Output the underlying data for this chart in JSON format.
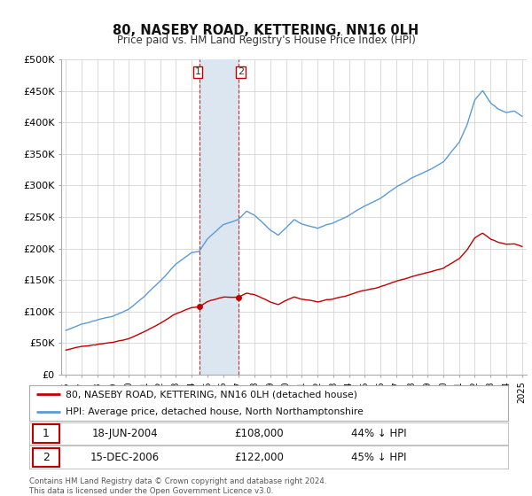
{
  "title": "80, NASEBY ROAD, KETTERING, NN16 0LH",
  "subtitle": "Price paid vs. HM Land Registry's House Price Index (HPI)",
  "ylabel_ticks": [
    "£0",
    "£50K",
    "£100K",
    "£150K",
    "£200K",
    "£250K",
    "£300K",
    "£350K",
    "£400K",
    "£450K",
    "£500K"
  ],
  "ytick_values": [
    0,
    50000,
    100000,
    150000,
    200000,
    250000,
    300000,
    350000,
    400000,
    450000,
    500000
  ],
  "ylim": [
    0,
    500000
  ],
  "hpi_color": "#5b9bd5",
  "price_color": "#c00000",
  "sale1_date_label": "18-JUN-2004",
  "sale1_price": 108000,
  "sale1_price_label": "£108,000",
  "sale1_pct_label": "44% ↓ HPI",
  "sale2_date_label": "15-DEC-2006",
  "sale2_price": 122000,
  "sale2_price_label": "£122,000",
  "sale2_pct_label": "45% ↓ HPI",
  "legend_line1": "80, NASEBY ROAD, KETTERING, NN16 0LH (detached house)",
  "legend_line2": "HPI: Average price, detached house, North Northamptonshire",
  "footnote": "Contains HM Land Registry data © Crown copyright and database right 2024.\nThis data is licensed under the Open Government Licence v3.0.",
  "highlight_x1": 2004.47,
  "highlight_x2": 2006.96,
  "highlight_color": "#dce6f1",
  "sale1_marker_x": 2004.47,
  "sale1_marker_y": 108000,
  "sale2_marker_x": 2006.96,
  "sale2_marker_y": 122000,
  "background_color": "#ffffff",
  "grid_color": "#cccccc",
  "xlim_left": 1995.7,
  "xlim_right": 2025.3,
  "xtick_start": 1996,
  "xtick_end": 2025
}
